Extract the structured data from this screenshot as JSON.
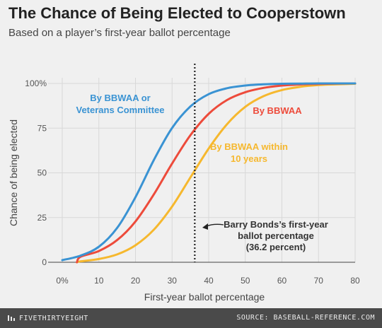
{
  "header": {
    "title": "The Chance of Being Elected to Cooperstown",
    "subtitle": "Based on a player’s first-year ballot percentage"
  },
  "footer": {
    "brand": "FIVETHIRTYEIGHT",
    "source": "SOURCE: BASEBALL-REFERENCE.COM",
    "brand_icon": "fivethirtyeight-logo-icon"
  },
  "chart_data": {
    "type": "line",
    "xlabel": "First-year ballot percentage",
    "ylabel": "Chance of being elected",
    "xlim": [
      0,
      80
    ],
    "ylim": [
      0,
      100
    ],
    "x_ticks": [
      {
        "value": 0,
        "label": "0%"
      },
      {
        "value": 10,
        "label": "10"
      },
      {
        "value": 20,
        "label": "20"
      },
      {
        "value": 30,
        "label": "30"
      },
      {
        "value": 40,
        "label": "40"
      },
      {
        "value": 50,
        "label": "50"
      },
      {
        "value": 60,
        "label": "60"
      },
      {
        "value": 70,
        "label": "70"
      },
      {
        "value": 80,
        "label": "80"
      }
    ],
    "y_ticks": [
      {
        "value": 0,
        "label": "0"
      },
      {
        "value": 25,
        "label": "25"
      },
      {
        "value": 50,
        "label": "50"
      },
      {
        "value": 75,
        "label": "75"
      },
      {
        "value": 100,
        "label": "100%"
      }
    ],
    "grid": true,
    "series": [
      {
        "name": "By BBWAA or Veterans Committee",
        "label_lines": [
          "By BBWAA or",
          "Veterans Committee"
        ],
        "color": "#3a93d3",
        "x": [
          0,
          5,
          10,
          15,
          20,
          25,
          30,
          35,
          40,
          45,
          50,
          55,
          60,
          65,
          70,
          75,
          80
        ],
        "y": [
          1.2,
          3.7,
          8.7,
          19.2,
          36.4,
          57.1,
          75.1,
          87.1,
          94.0,
          97.3,
          98.8,
          99.5,
          99.8,
          99.9,
          100,
          100,
          100
        ]
      },
      {
        "name": "By BBWAA",
        "label_lines": [
          "By BBWAA"
        ],
        "color": "#ed4b3b",
        "x": [
          4,
          5,
          10,
          15,
          20,
          25,
          30,
          35,
          40,
          45,
          50,
          55,
          60,
          65,
          70,
          75,
          80
        ],
        "y": [
          0,
          3.1,
          6.3,
          12.4,
          22.8,
          37.9,
          55.2,
          71.0,
          83.0,
          90.7,
          95.1,
          97.5,
          98.8,
          99.4,
          99.7,
          99.9,
          100
        ]
      },
      {
        "name": "By BBWAA within 10 years",
        "label_lines": [
          "By BBWAA within",
          "10 years"
        ],
        "color": "#f6b82e",
        "x": [
          4,
          5,
          10,
          15,
          20,
          25,
          30,
          35,
          40,
          45,
          50,
          55,
          60,
          65,
          70,
          75,
          80
        ],
        "y": [
          0,
          0.5,
          1.8,
          4.4,
          9.5,
          18.2,
          31.2,
          47.4,
          63.6,
          77.2,
          86.9,
          92.9,
          96.3,
          98.1,
          99.1,
          99.5,
          99.8
        ]
      }
    ],
    "reference_line": {
      "x": 36.2,
      "label_lines": [
        "Barry Bonds’s first-year",
        "ballot percentage",
        "(36.2 percent)"
      ]
    }
  }
}
